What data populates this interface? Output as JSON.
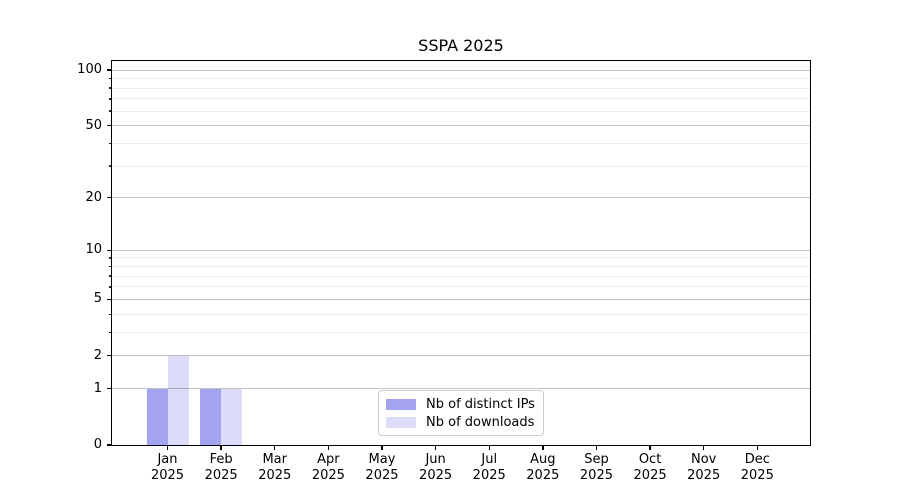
{
  "page": {
    "background": "#ffffff"
  },
  "chart_data": {
    "type": "bar",
    "title": "SSPA 2025",
    "months": [
      "Jan",
      "Feb",
      "Mar",
      "Apr",
      "May",
      "Jun",
      "Jul",
      "Aug",
      "Sep",
      "Oct",
      "Nov",
      "Dec"
    ],
    "year_label": "2025",
    "series": [
      {
        "name": "Nb of distinct IPs",
        "color": "#a3a3ef",
        "values": [
          1,
          1,
          0,
          0,
          0,
          0,
          0,
          0,
          0,
          0,
          0,
          0
        ]
      },
      {
        "name": "Nb of downloads",
        "color": "#dcdcf8",
        "values": [
          2,
          1,
          0,
          0,
          0,
          0,
          0,
          0,
          0,
          0,
          0,
          0
        ]
      }
    ],
    "xlabel": "",
    "ylabel": "",
    "yscale": "log1p",
    "ylim": [
      0,
      112
    ],
    "yticks_major": [
      0,
      1,
      2,
      5,
      10,
      20,
      50,
      100
    ],
    "yticks_minor": [
      3,
      4,
      6,
      7,
      8,
      9,
      30,
      40,
      60,
      70,
      80,
      90
    ],
    "grid": true,
    "legend_position": "lower center",
    "axis_color": "#000000",
    "grid_major_color": "#c2c2c2",
    "grid_minor_color": "#ededed"
  }
}
